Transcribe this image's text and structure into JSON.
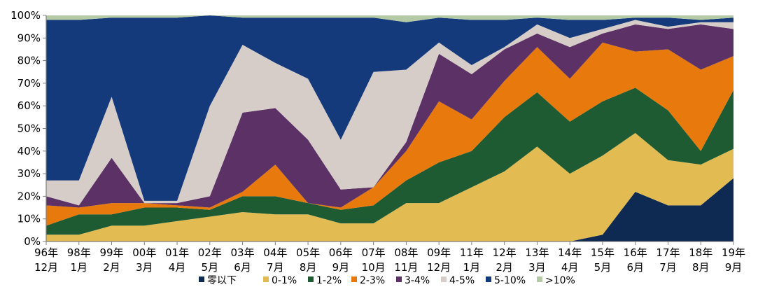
{
  "chart_data": {
    "type": "area",
    "stacked": true,
    "normalized": true,
    "title": "",
    "xlabel": "",
    "ylabel": "",
    "ylim": [
      0,
      100
    ],
    "y_ticks": [
      "0%",
      "10%",
      "20%",
      "30%",
      "40%",
      "50%",
      "60%",
      "70%",
      "80%",
      "90%",
      "100%"
    ],
    "x_ticks": [
      [
        "96年",
        "12月"
      ],
      [
        "98年",
        "1月"
      ],
      [
        "99年",
        "2月"
      ],
      [
        "00年",
        "3月"
      ],
      [
        "01年",
        "4月"
      ],
      [
        "02年",
        "5月"
      ],
      [
        "03年",
        "6月"
      ],
      [
        "04年",
        "7月"
      ],
      [
        "05年",
        "8月"
      ],
      [
        "06年",
        "9月"
      ],
      [
        "07年",
        "10月"
      ],
      [
        "08年",
        "11月"
      ],
      [
        "09年",
        "12月"
      ],
      [
        "11年",
        "1月"
      ],
      [
        "12年",
        "2月"
      ],
      [
        "13年",
        "3月"
      ],
      [
        "14年",
        "4月"
      ],
      [
        "15年",
        "5月"
      ],
      [
        "16年",
        "6月"
      ],
      [
        "17年",
        "7月"
      ],
      [
        "18年",
        "8月"
      ],
      [
        "19年",
        "9月"
      ]
    ],
    "legend_position": "bottom",
    "series": [
      {
        "name": "零以下",
        "color": "#0f2a52",
        "values": [
          0,
          0,
          0,
          0,
          0,
          0,
          0,
          0,
          0,
          0,
          0,
          0,
          0,
          0,
          0,
          0,
          0,
          3,
          22,
          16,
          16,
          28
        ]
      },
      {
        "name": "0-1%",
        "color": "#e2bb52",
        "values": [
          3,
          3,
          7,
          7,
          9,
          11,
          13,
          12,
          12,
          8,
          8,
          17,
          17,
          24,
          31,
          42,
          30,
          35,
          26,
          20,
          18,
          13
        ]
      },
      {
        "name": "1-2%",
        "color": "#1e5b33",
        "values": [
          4,
          9,
          5,
          8,
          6,
          3,
          7,
          8,
          5,
          6,
          8,
          10,
          18,
          16,
          24,
          24,
          23,
          24,
          20,
          22,
          6,
          26
        ]
      },
      {
        "name": "2-3%",
        "color": "#e8790c",
        "values": [
          9,
          3,
          5,
          2,
          1,
          1,
          2,
          14,
          0,
          1,
          8,
          13,
          27,
          14,
          16,
          20,
          19,
          26,
          16,
          27,
          36,
          15
        ]
      },
      {
        "name": "3-4%",
        "color": "#5c3165",
        "values": [
          4,
          1,
          20,
          0,
          1,
          5,
          35,
          25,
          28,
          8,
          0,
          4,
          21,
          20,
          14,
          6,
          14,
          4,
          12,
          9,
          20,
          12
        ]
      },
      {
        "name": "4-5%",
        "color": "#d7cdc8",
        "values": [
          7,
          11,
          27,
          1,
          1,
          40,
          30,
          20,
          27,
          22,
          51,
          32,
          5,
          4,
          1,
          4,
          4,
          2,
          2,
          1,
          1,
          3
        ]
      },
      {
        "name": "5-10%",
        "color": "#143a7c",
        "values": [
          71,
          71,
          35,
          81,
          81,
          40,
          12,
          20,
          27,
          54,
          24,
          21,
          11,
          20,
          12,
          3,
          8,
          4,
          1,
          4,
          1,
          2
        ]
      },
      {
        "name": ">10%",
        "color": "#b4c9a6",
        "values": [
          2,
          2,
          1,
          1,
          1,
          0,
          1,
          1,
          1,
          1,
          1,
          3,
          1,
          2,
          2,
          1,
          2,
          2,
          1,
          1,
          2,
          1
        ]
      }
    ]
  }
}
